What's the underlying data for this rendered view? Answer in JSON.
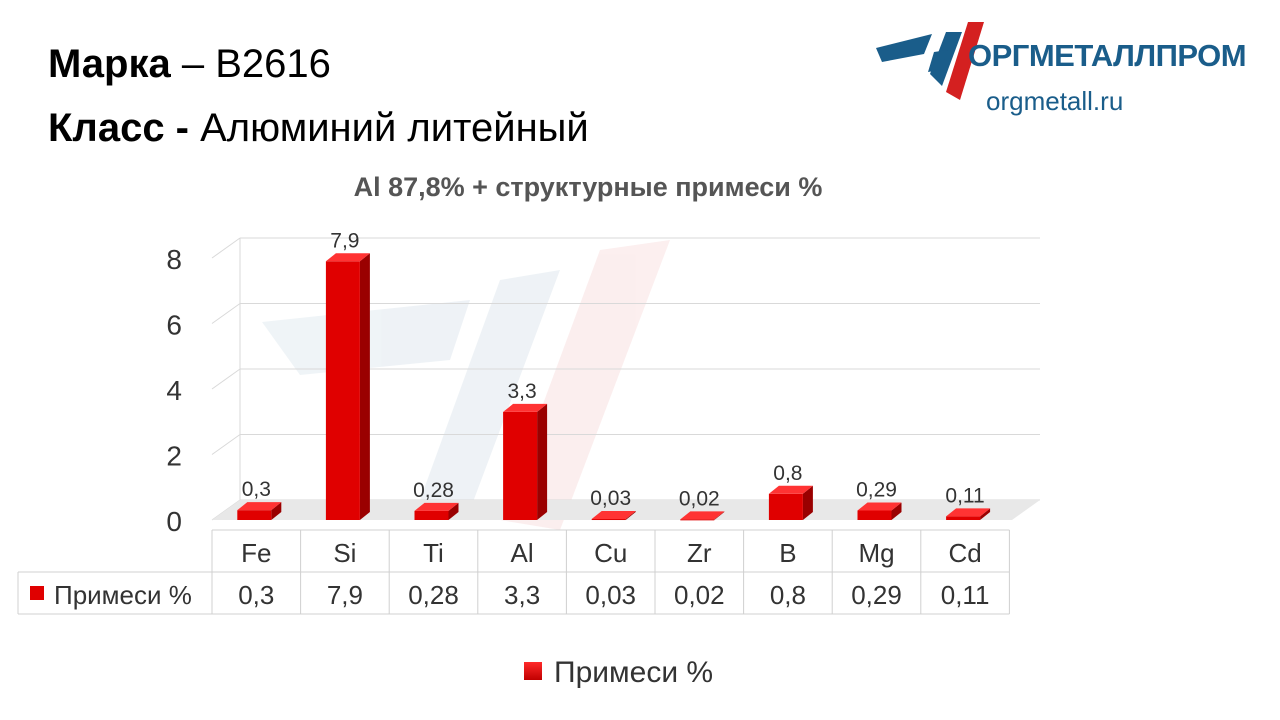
{
  "header": {
    "grade_label": "Марка",
    "grade_sep": "– В2616",
    "class_label": "Класс -",
    "class_value": "Алюминий литейный"
  },
  "logo": {
    "name": "ОРГМЕТАЛЛПРОМ",
    "url": "orgmetall.ru"
  },
  "colors": {
    "bar": "#e00000",
    "bar_dark": "#9a0000",
    "bar_top": "#ff3333",
    "logo_blue": "#1a5d8a",
    "logo_red": "#d42020"
  },
  "chart_data": {
    "type": "bar",
    "title": "Al 87,8% + структурные примеси %",
    "categories": [
      "Fe",
      "Si",
      "Ti",
      "Al",
      "Cu",
      "Zr",
      "B",
      "Mg",
      "Cd"
    ],
    "series": [
      {
        "name": "Примеси %",
        "values": [
          0.3,
          7.9,
          0.28,
          3.3,
          0.03,
          0.02,
          0.8,
          0.29,
          0.11
        ],
        "labels": [
          "0,3",
          "7,9",
          "0,28",
          "3,3",
          "0,03",
          "0,02",
          "0,8",
          "0,29",
          "0,11"
        ]
      }
    ],
    "ylim": [
      0,
      8
    ],
    "yticks": [
      "0",
      "2",
      "4",
      "6",
      "8"
    ],
    "grid": true,
    "legend": "bottom",
    "data_table": true
  }
}
